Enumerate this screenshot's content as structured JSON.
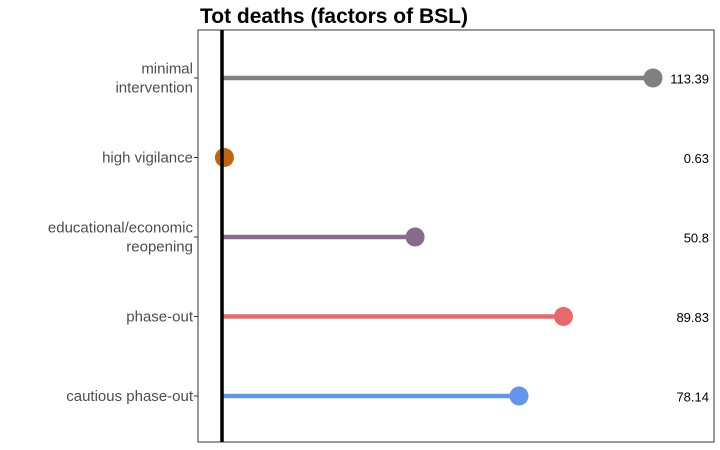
{
  "chart_data": {
    "type": "lollipop",
    "title": "Tot deaths (factors of BSL)",
    "xlabel": "",
    "ylabel": "",
    "xlim": [
      0,
      115
    ],
    "grid": false,
    "categories": [
      "minimal intervention",
      "high vigilance",
      "educational/economic reopening",
      "phase-out",
      "cautious phase-out"
    ],
    "category_lines": [
      [
        "minimal",
        "intervention"
      ],
      [
        "high vigilance"
      ],
      [
        "educational/economic",
        "reopening"
      ],
      [
        "phase-out"
      ],
      [
        "cautious phase-out"
      ]
    ],
    "values": [
      113.39,
      0.63,
      50.8,
      89.83,
      78.14
    ],
    "value_labels": [
      "113.39",
      "0.63",
      "50.8",
      "89.83",
      "78.14"
    ],
    "colors": [
      "#808080",
      "#c0650d",
      "#876a8c",
      "#e8696b",
      "#6495ed"
    ]
  }
}
